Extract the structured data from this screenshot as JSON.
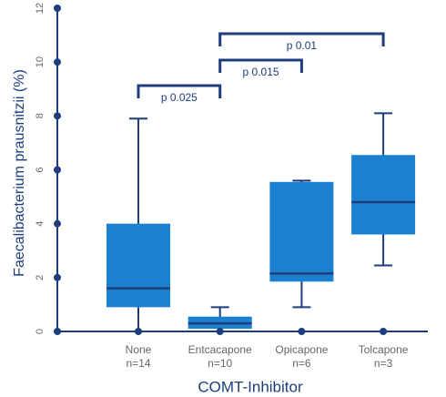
{
  "chart_data": {
    "type": "box",
    "y_label": "Faecalibacterium prausnitzii (%)",
    "x_label": "COMT-Inhibitor",
    "categories": [
      "None",
      "Entcacapone",
      "Opicapone",
      "Tolcapone"
    ],
    "sample_sizes": [
      "n=14",
      "n=10",
      "n=6",
      "n=3"
    ],
    "boxes": [
      {
        "min": 0,
        "q1": 0.9,
        "median": 1.6,
        "q3": 4.0,
        "max": 7.9
      },
      {
        "min": 0,
        "q1": 0.1,
        "median": 0.3,
        "q3": 0.55,
        "max": 0.9
      },
      {
        "min": 0.9,
        "q1": 1.85,
        "median": 2.15,
        "q3": 5.55,
        "max": 5.6
      },
      {
        "min": 2.45,
        "q1": 3.6,
        "median": 4.8,
        "q3": 6.55,
        "max": 8.1
      }
    ],
    "color": "#1b80cf",
    "median_color": "#1d3d7c",
    "axis_color": "#1d3d7c",
    "ylim": [
      0,
      12
    ],
    "yticks": [
      0,
      2,
      4,
      6,
      8,
      10,
      12
    ],
    "annotations": [
      "p 0.025",
      "p 0.015",
      "p 0.01"
    ]
  }
}
